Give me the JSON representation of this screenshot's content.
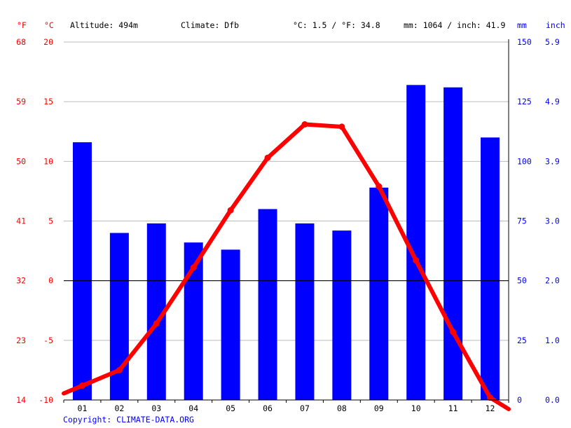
{
  "header": {
    "f_unit": "°F",
    "c_unit": "°C",
    "altitude": "Altitude: 494m",
    "climate": "Climate: Dfb",
    "temp_avg": "°C: 1.5 / °F: 34.8",
    "precip_total": "mm: 1064 / inch: 41.9",
    "mm_unit": "mm",
    "inch_unit": "inch"
  },
  "copyright": "Copyright: CLIMATE-DATA.ORG",
  "colors": {
    "temperature": "#ff0000",
    "precipitation": "#0000ff",
    "zero_line": "#000000",
    "grid": "#bbbbbb"
  },
  "chart_data": {
    "type": "bar",
    "categories": [
      "01",
      "02",
      "03",
      "04",
      "05",
      "06",
      "07",
      "08",
      "09",
      "10",
      "11",
      "12"
    ],
    "series": [
      {
        "type": "bar",
        "axis": "right-mm",
        "values": [
          108,
          70,
          74,
          66,
          63,
          80,
          74,
          71,
          89,
          132,
          131,
          110
        ]
      },
      {
        "type": "line",
        "axis": "left-celsius",
        "values": [
          -8.8,
          -7.5,
          -3.6,
          1.1,
          5.9,
          10.3,
          13.1,
          12.9,
          7.9,
          1.7,
          -4.3,
          -9.8
        ]
      }
    ],
    "left_axis_c": {
      "ticks": [
        20,
        15,
        10,
        5,
        0,
        -5,
        -10
      ],
      "range": [
        -10,
        20
      ]
    },
    "left_axis_f": {
      "ticks": [
        "68",
        "59",
        "50",
        "41",
        "32",
        "23",
        "14"
      ]
    },
    "right_axis_mm": {
      "ticks": [
        "150",
        "125",
        "100",
        "75",
        "50",
        "25",
        "0"
      ],
      "range": [
        0,
        150
      ]
    },
    "right_axis_inch": {
      "ticks": [
        "5.9",
        "4.9",
        "3.9",
        "3.0",
        "2.0",
        "1.0",
        "0.0"
      ]
    },
    "grid": true
  }
}
